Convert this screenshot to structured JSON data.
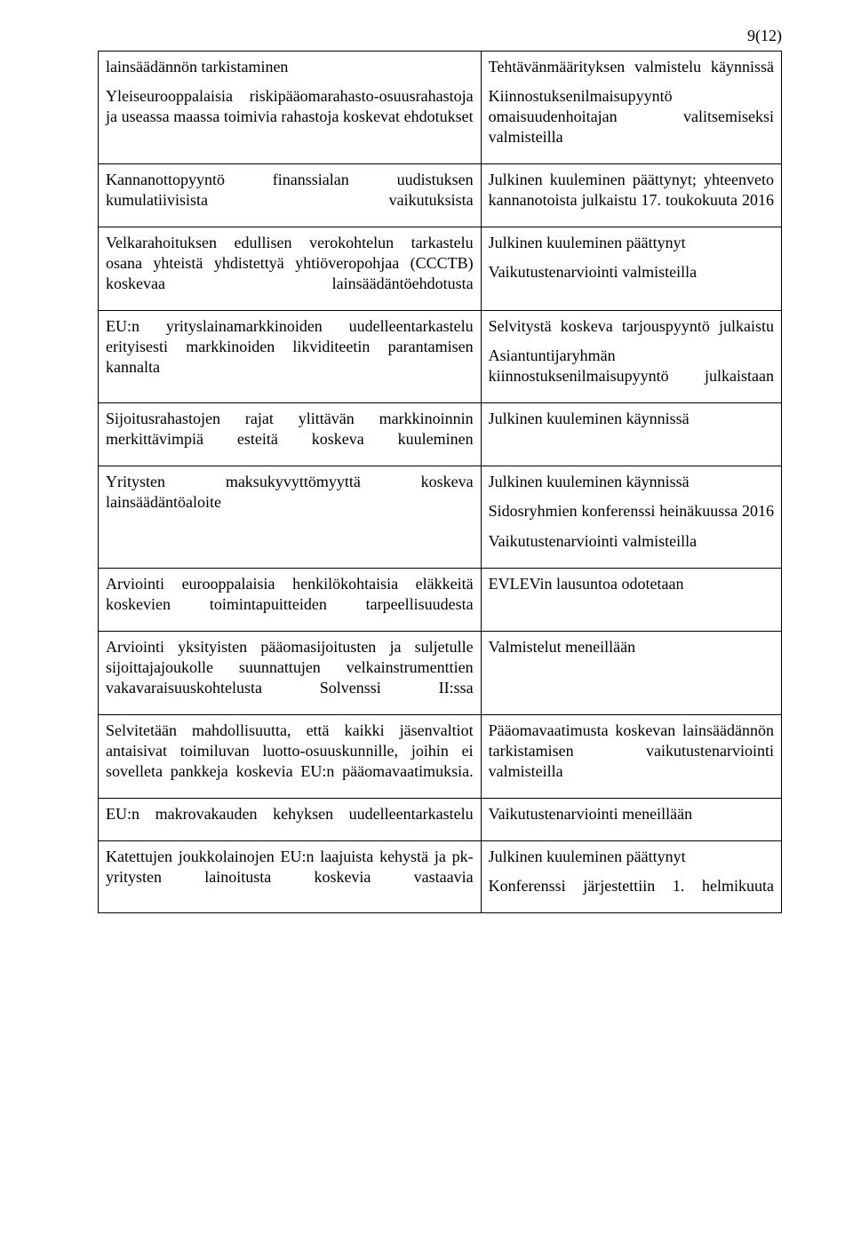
{
  "page_number": "9(12)",
  "rows": [
    {
      "left": [
        "lainsäädännön tarkistaminen",
        "Yleiseurooppalaisia riskipääomarahasto-osuusrahastoja ja useassa maassa toimivia rahastoja koskevat ehdotukset"
      ],
      "right": [
        "Tehtävänmäärityksen valmistelu käynnissä",
        "Kiinnostuksenilmaisupyyntö omaisuudenhoitajan valitsemiseksi valmisteilla"
      ],
      "spread_left": [
        false,
        true
      ],
      "spread_right": [
        true,
        true
      ]
    },
    {
      "left": [
        "Kannanottopyyntö finanssialan uudistuksen kumulatiivisista vaikutuksista"
      ],
      "right": [
        "Julkinen kuuleminen päättynyt; yhteenveto kannanotoista julkaistu 17. toukokuuta 2016"
      ],
      "spread_left": [
        true
      ],
      "spread_right": [
        true
      ]
    },
    {
      "left": [
        "Velkarahoituksen edullisen verokohtelun tarkastelu osana yhteistä yhdistettyä yhtiöveropohjaa (CCCTB) koskevaa lainsäädäntöehdotusta"
      ],
      "right": [
        "Julkinen kuuleminen päättynyt",
        "Vaikutustenarviointi valmisteilla"
      ],
      "spread_left": [
        true
      ],
      "spread_right": [
        false,
        false
      ]
    },
    {
      "left": [
        "EU:n yrityslainamarkkinoiden uudelleentarkastelu erityisesti markkinoiden likviditeetin parantamisen kannalta"
      ],
      "right": [
        "Selvitystä koskeva tarjouspyyntö julkaistu",
        "Asiantuntijaryhmän kiinnostuksenilmaisupyyntö julkaistaan"
      ],
      "spread_left": [
        true
      ],
      "spread_right": [
        true,
        true
      ]
    },
    {
      "left": [
        "Sijoitusrahastojen rajat ylittävän markkinoinnin merkittävimpiä esteitä koskeva kuuleminen"
      ],
      "right": [
        "Julkinen kuuleminen käynnissä"
      ],
      "spread_left": [
        true
      ],
      "spread_right": [
        false
      ]
    },
    {
      "left": [
        "Yritysten maksukyvyttömyyttä koskeva lainsäädäntöaloite"
      ],
      "right": [
        "Julkinen kuuleminen käynnissä",
        "Sidosryhmien konferenssi heinäkuussa 2016",
        "Vaikutustenarviointi valmisteilla"
      ],
      "spread_left": [
        true
      ],
      "spread_right": [
        false,
        true,
        false
      ]
    },
    {
      "left": [
        "Arviointi eurooppalaisia henkilökohtaisia eläkkeitä koskevien toimintapuitteiden tarpeellisuudesta"
      ],
      "right": [
        "EVLEVin lausuntoa odotetaan"
      ],
      "spread_left": [
        true
      ],
      "spread_right": [
        false
      ]
    },
    {
      "left": [
        "Arviointi yksityisten pääomasijoitusten ja suljetulle sijoittajajoukolle suunnattujen velkainstrumenttien vakavaraisuuskohtelusta Solvenssi II:ssa"
      ],
      "right": [
        "Valmistelut meneillään"
      ],
      "spread_left": [
        true
      ],
      "spread_right": [
        false
      ]
    },
    {
      "left": [
        "Selvitetään mahdollisuutta, että kaikki jäsenvaltiot antaisivat toimiluvan luotto-osuuskunnille, joihin ei sovelleta pankkeja koskevia EU:n pääomavaatimuksia."
      ],
      "right": [
        "Pääomavaatimusta koskevan lainsäädännön tarkistamisen vaikutustenarviointi valmisteilla"
      ],
      "spread_left": [
        true
      ],
      "spread_right": [
        true
      ]
    },
    {
      "left": [
        "EU:n makrovakauden kehyksen uudelleentarkastelu"
      ],
      "right": [
        "Vaikutustenarviointi meneillään"
      ],
      "spread_left": [
        true
      ],
      "spread_right": [
        false
      ]
    },
    {
      "left": [
        "Katettujen joukkolainojen EU:n laajuista kehystä ja pk-yritysten lainoitusta koskevia vastaavia"
      ],
      "right": [
        "Julkinen kuuleminen päättynyt",
        "Konferenssi järjestettiin 1. helmikuuta"
      ],
      "spread_left": [
        true
      ],
      "spread_right": [
        false,
        true
      ]
    }
  ]
}
